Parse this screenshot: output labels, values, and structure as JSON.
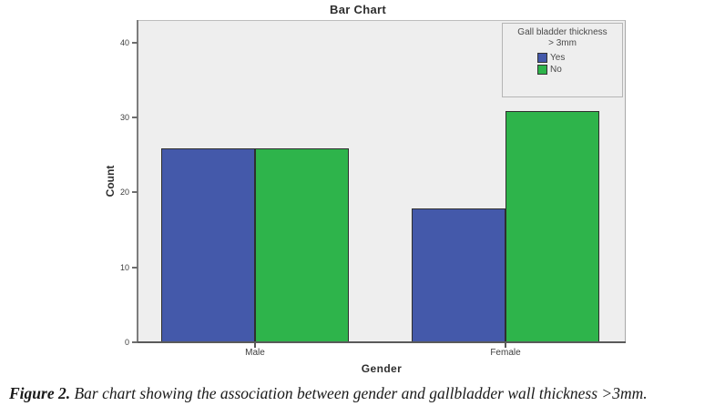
{
  "chart": {
    "title": "Bar Chart",
    "xlabel": "Gender",
    "ylabel": "Count"
  },
  "legend": {
    "title_line1": "Gall bladder thickness",
    "title_line2": "> 3mm",
    "items": [
      {
        "label": "Yes",
        "color": "#4459aa"
      },
      {
        "label": "No",
        "color": "#2eb44b"
      }
    ]
  },
  "chart_data": {
    "type": "bar",
    "title": "Bar Chart",
    "categories": [
      "Male",
      "Female"
    ],
    "series": [
      {
        "name": "Yes",
        "values": [
          26,
          18
        ],
        "color": "#4459aa"
      },
      {
        "name": "No",
        "values": [
          26,
          31
        ],
        "color": "#2eb44b"
      }
    ],
    "xlabel": "Gender",
    "ylabel": "Count",
    "ylim": [
      0,
      43
    ],
    "yticks": [
      0,
      10,
      20,
      30,
      40
    ],
    "grid": false,
    "legend_title": "Gall bladder thickness > 3mm",
    "legend_position": "inside-top-right",
    "plot_background": "#eeeeee"
  },
  "caption": {
    "label": "Figure 2.",
    "text": "Bar chart showing the association between gender and gallbladder wall thickness >3mm."
  },
  "colors": {
    "yes_blue": "#4459aa",
    "no_green": "#2eb44b",
    "plot_bg": "#eeeeee",
    "axis_dark": "#5a5a5a",
    "frame_gray": "#a8a8a8",
    "bar_border": "#2f2f2f",
    "text_dark": "#2e2e2e"
  }
}
